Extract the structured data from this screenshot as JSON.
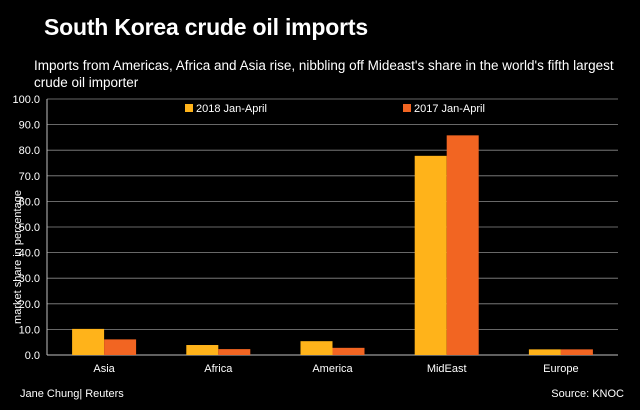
{
  "header": {
    "title": "South Korea crude oil imports",
    "subtitle": "Imports from Americas, Africa and Asia rise, nibbling off Mideast's share in the world's fifth largest crude oil importer"
  },
  "footer": {
    "credit": "Jane Chung| Reuters",
    "source": "Source: KNOC"
  },
  "chart_data": {
    "type": "bar",
    "categories": [
      "Asia",
      "Africa",
      "America",
      "MidEast",
      "Europe"
    ],
    "series": [
      {
        "name": "2018 Jan-April",
        "color": "#FFB31A",
        "values": [
          10.2,
          3.9,
          5.4,
          77.8,
          2.2
        ]
      },
      {
        "name": "2017 Jan-April",
        "color": "#F26522",
        "values": [
          6.1,
          2.3,
          2.8,
          85.8,
          2.2
        ]
      }
    ],
    "ylabel": "market share in percentage",
    "ylim": [
      0,
      100
    ],
    "yticks": [
      "0.0",
      "10.0",
      "20.0",
      "30.0",
      "40.0",
      "50.0",
      "60.0",
      "70.0",
      "80.0",
      "90.0",
      "100.0"
    ],
    "grid": true,
    "legend_position": "top-right"
  }
}
